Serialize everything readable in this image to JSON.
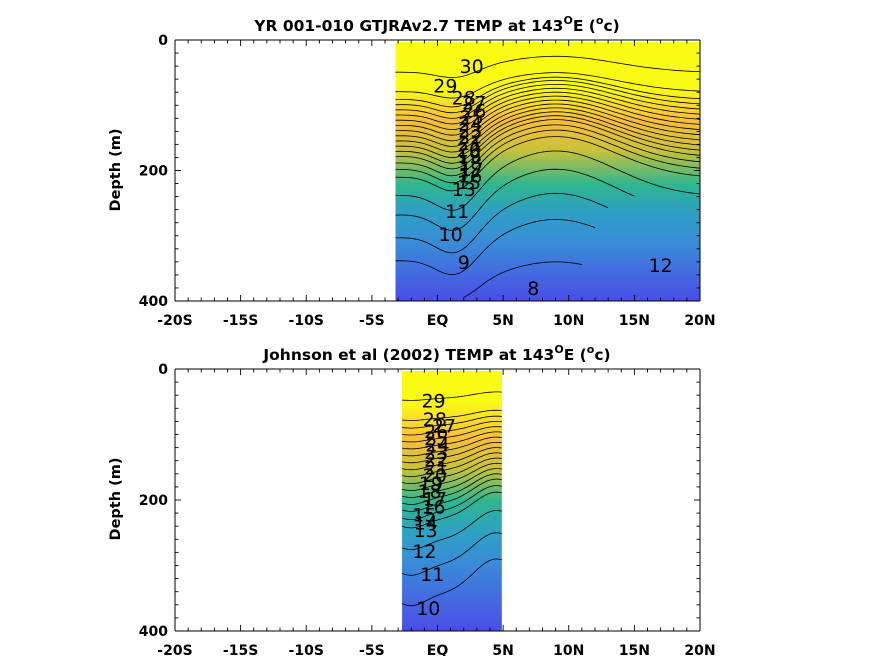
{
  "colors": {
    "surface": "#f9fb14",
    "warm": "#f8be3c",
    "thermo": "#2fb68f",
    "mid": "#3a8bd8",
    "deep": "#4b4de8"
  },
  "chart_data": [
    {
      "type": "heatmap",
      "title_main": "YR 001-010 GTJRAv2.7 TEMP at 143",
      "title_deg": "O",
      "title_e": "E (",
      "title_unit_sup": "o",
      "title_unit": "c)",
      "ylabel": "Depth (m)",
      "xlim": [
        -20,
        20
      ],
      "ylim": [
        0,
        400
      ],
      "data_xrange": [
        -3.2,
        20
      ],
      "x_major_ticks": [
        -20,
        -15,
        -10,
        -5,
        0,
        5,
        10,
        15,
        20
      ],
      "x_tick_labels": [
        "-20S",
        "-15S",
        "-10S",
        "-5S",
        "EQ",
        "5N",
        "10N",
        "15N",
        "20N"
      ],
      "y_major_ticks": [
        0,
        200,
        400
      ],
      "y_tick_labels": [
        "0",
        "200",
        "400"
      ],
      "isotherms": [
        {
          "value": 29,
          "depth": 50,
          "amp": 25,
          "lat_min": -3.2,
          "lat_max": 20
        },
        {
          "value": 28,
          "depth": 80,
          "amp": 30,
          "lat_min": -3.2,
          "lat_max": 20
        },
        {
          "value": 27,
          "depth": 92,
          "amp": 35,
          "lat_min": -3.2,
          "lat_max": 20
        },
        {
          "value": 26,
          "depth": 100,
          "amp": 38,
          "lat_min": -3.2,
          "lat_max": 20
        },
        {
          "value": 25,
          "depth": 108,
          "amp": 40,
          "lat_min": -3.2,
          "lat_max": 20
        },
        {
          "value": 24,
          "depth": 116,
          "amp": 42,
          "lat_min": -3.2,
          "lat_max": 20
        },
        {
          "value": 23,
          "depth": 124,
          "amp": 44,
          "lat_min": -3.2,
          "lat_max": 20
        },
        {
          "value": 22,
          "depth": 132,
          "amp": 46,
          "lat_min": -3.2,
          "lat_max": 20
        },
        {
          "value": 21,
          "depth": 140,
          "amp": 48,
          "lat_min": -3.2,
          "lat_max": 20
        },
        {
          "value": 20,
          "depth": 148,
          "amp": 50,
          "lat_min": -3.2,
          "lat_max": 20
        },
        {
          "value": 19,
          "depth": 156,
          "amp": 52,
          "lat_min": -3.2,
          "lat_max": 20
        },
        {
          "value": 18,
          "depth": 164,
          "amp": 54,
          "lat_min": -3.2,
          "lat_max": 20
        },
        {
          "value": 17,
          "depth": 172,
          "amp": 56,
          "lat_min": -3.2,
          "lat_max": 20
        },
        {
          "value": 16,
          "depth": 180,
          "amp": 58,
          "lat_min": -3.2,
          "lat_max": 20
        },
        {
          "value": 15,
          "depth": 190,
          "amp": 60,
          "lat_min": -3.2,
          "lat_max": 20
        },
        {
          "value": 14,
          "depth": 200,
          "amp": 62,
          "lat_min": -3.2,
          "lat_max": 20
        },
        {
          "value": 13,
          "depth": 212,
          "amp": 64,
          "lat_min": -3.2,
          "lat_max": 20
        },
        {
          "value": 12,
          "depth": 240,
          "amp": 70,
          "lat_min": -3.2,
          "lat_max": 20
        },
        {
          "value": 11,
          "depth": 270,
          "amp": 72,
          "lat_min": -3.2,
          "lat_max": 15
        },
        {
          "value": 10,
          "depth": 305,
          "amp": 70,
          "lat_min": -3.2,
          "lat_max": 13
        },
        {
          "value": 9,
          "depth": 340,
          "amp": 65,
          "lat_min": -3.2,
          "lat_max": 12
        },
        {
          "value": 8,
          "depth": 385,
          "amp": 45,
          "lat_min": 2,
          "lat_max": 11
        }
      ],
      "contour_labels": [
        {
          "text": "30",
          "lat": 2.6,
          "depth": 40
        },
        {
          "text": "29",
          "lat": 0.6,
          "depth": 70
        },
        {
          "text": "28",
          "lat": 2.0,
          "depth": 88
        },
        {
          "text": "27",
          "lat": 2.8,
          "depth": 96
        },
        {
          "text": "26",
          "lat": 2.8,
          "depth": 108
        },
        {
          "text": "25",
          "lat": 2.6,
          "depth": 118
        },
        {
          "text": "24",
          "lat": 2.5,
          "depth": 128
        },
        {
          "text": "23",
          "lat": 2.5,
          "depth": 138
        },
        {
          "text": "22",
          "lat": 2.5,
          "depth": 148
        },
        {
          "text": "21",
          "lat": 2.5,
          "depth": 158
        },
        {
          "text": "20",
          "lat": 2.4,
          "depth": 168
        },
        {
          "text": "19",
          "lat": 2.4,
          "depth": 178
        },
        {
          "text": "18",
          "lat": 2.5,
          "depth": 188
        },
        {
          "text": "17",
          "lat": 2.6,
          "depth": 198
        },
        {
          "text": "16",
          "lat": 2.5,
          "depth": 208
        },
        {
          "text": "15",
          "lat": 2.4,
          "depth": 218
        },
        {
          "text": "13",
          "lat": 2.0,
          "depth": 228
        },
        {
          "text": "11",
          "lat": 1.5,
          "depth": 262
        },
        {
          "text": "10",
          "lat": 1.0,
          "depth": 297
        },
        {
          "text": "9",
          "lat": 2.0,
          "depth": 340
        },
        {
          "text": "8",
          "lat": 7.3,
          "depth": 380
        },
        {
          "text": "12",
          "lat": 17.0,
          "depth": 345
        }
      ]
    },
    {
      "type": "heatmap",
      "title_main": "Johnson et al (2002) TEMP at 143",
      "title_deg": "O",
      "title_e": "E (",
      "title_unit_sup": "o",
      "title_unit": "c)",
      "ylabel": "Depth (m)",
      "xlim": [
        -20,
        20
      ],
      "ylim": [
        0,
        400
      ],
      "data_xrange": [
        -2.7,
        4.9
      ],
      "x_major_ticks": [
        -20,
        -15,
        -10,
        -5,
        0,
        5,
        10,
        15,
        20
      ],
      "x_tick_labels": [
        "-20S",
        "-15S",
        "-10S",
        "-5S",
        "EQ",
        "5N",
        "10N",
        "15N",
        "20N"
      ],
      "y_major_ticks": [
        0,
        200,
        400
      ],
      "y_tick_labels": [
        "0",
        "200",
        "400"
      ],
      "isotherms": [
        {
          "value": 29,
          "depth": 45,
          "amp": 10,
          "lat_min": -2.7,
          "lat_max": 4.9
        },
        {
          "value": 28,
          "depth": 75,
          "amp": 12,
          "lat_min": -2.7,
          "lat_max": 4.9
        },
        {
          "value": 27,
          "depth": 86,
          "amp": 14,
          "lat_min": -2.7,
          "lat_max": 4.9
        },
        {
          "value": 26,
          "depth": 96,
          "amp": 16,
          "lat_min": -2.7,
          "lat_max": 4.9
        },
        {
          "value": 25,
          "depth": 106,
          "amp": 18,
          "lat_min": -2.7,
          "lat_max": 4.9
        },
        {
          "value": 24,
          "depth": 116,
          "amp": 20,
          "lat_min": -2.7,
          "lat_max": 4.9
        },
        {
          "value": 23,
          "depth": 126,
          "amp": 22,
          "lat_min": -2.7,
          "lat_max": 4.9
        },
        {
          "value": 22,
          "depth": 136,
          "amp": 24,
          "lat_min": -2.7,
          "lat_max": 4.9
        },
        {
          "value": 21,
          "depth": 146,
          "amp": 26,
          "lat_min": -2.7,
          "lat_max": 4.9
        },
        {
          "value": 20,
          "depth": 156,
          "amp": 28,
          "lat_min": -2.7,
          "lat_max": 4.9
        },
        {
          "value": 19,
          "depth": 166,
          "amp": 30,
          "lat_min": -2.7,
          "lat_max": 4.9
        },
        {
          "value": 18,
          "depth": 176,
          "amp": 32,
          "lat_min": -2.7,
          "lat_max": 4.9
        },
        {
          "value": 17,
          "depth": 186,
          "amp": 34,
          "lat_min": -2.7,
          "lat_max": 4.9
        },
        {
          "value": 16,
          "depth": 196,
          "amp": 36,
          "lat_min": -2.7,
          "lat_max": 4.9
        },
        {
          "value": 15,
          "depth": 206,
          "amp": 38,
          "lat_min": -2.7,
          "lat_max": 4.9
        },
        {
          "value": 14,
          "depth": 218,
          "amp": 40,
          "lat_min": -2.7,
          "lat_max": 4.9
        },
        {
          "value": 13,
          "depth": 230,
          "amp": 42,
          "lat_min": -2.7,
          "lat_max": 4.9
        },
        {
          "value": 12,
          "depth": 262,
          "amp": 46,
          "lat_min": -2.7,
          "lat_max": 4.9
        },
        {
          "value": 11,
          "depth": 300,
          "amp": 50,
          "lat_min": -2.7,
          "lat_max": 4.9
        },
        {
          "value": 10,
          "depth": 345,
          "amp": 55,
          "lat_min": -2.7,
          "lat_max": 4.9
        }
      ],
      "contour_labels": [
        {
          "text": "29",
          "lat": -0.3,
          "depth": 48
        },
        {
          "text": "28",
          "lat": -0.2,
          "depth": 76
        },
        {
          "text": "27",
          "lat": 0.5,
          "depth": 86
        },
        {
          "text": "26",
          "lat": -0.1,
          "depth": 95
        },
        {
          "text": "25",
          "lat": -0.1,
          "depth": 105
        },
        {
          "text": "24",
          "lat": 0.0,
          "depth": 115
        },
        {
          "text": "23",
          "lat": -0.1,
          "depth": 127
        },
        {
          "text": "22",
          "lat": -0.1,
          "depth": 138
        },
        {
          "text": "21",
          "lat": -0.1,
          "depth": 150
        },
        {
          "text": "20",
          "lat": -0.2,
          "depth": 162
        },
        {
          "text": "19",
          "lat": -0.5,
          "depth": 174
        },
        {
          "text": "18",
          "lat": -0.6,
          "depth": 186
        },
        {
          "text": "17",
          "lat": -0.2,
          "depth": 198
        },
        {
          "text": "16",
          "lat": -0.3,
          "depth": 210
        },
        {
          "text": "15",
          "lat": -1.0,
          "depth": 222
        },
        {
          "text": "14",
          "lat": -0.9,
          "depth": 234
        },
        {
          "text": "13",
          "lat": -0.9,
          "depth": 246
        },
        {
          "text": "12",
          "lat": -1.0,
          "depth": 278
        },
        {
          "text": "11",
          "lat": -0.4,
          "depth": 313
        },
        {
          "text": "10",
          "lat": -0.7,
          "depth": 365
        }
      ]
    }
  ]
}
